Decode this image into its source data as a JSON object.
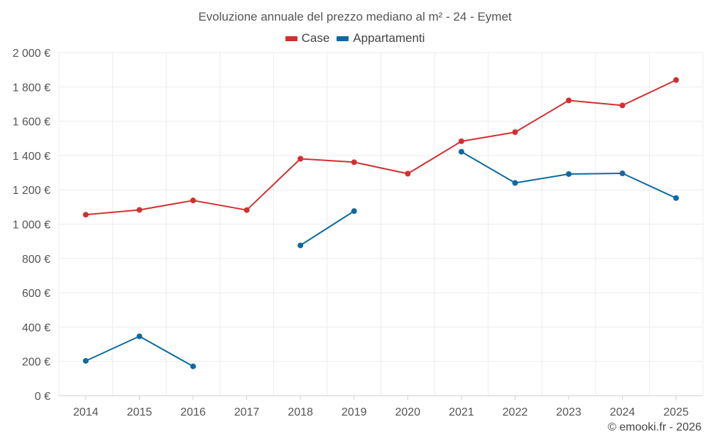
{
  "chart_data": {
    "type": "line",
    "title": "Evoluzione annuale del prezzo mediano al m² - 24 - Eymet",
    "categories": [
      "2014",
      "2015",
      "2016",
      "2017",
      "2018",
      "2019",
      "2020",
      "2021",
      "2022",
      "2023",
      "2024",
      "2025"
    ],
    "series": [
      {
        "name": "Case",
        "color": "#d32f2f",
        "values": [
          1055,
          1083,
          1138,
          1082,
          1381,
          1361,
          1294,
          1483,
          1536,
          1721,
          1692,
          1840
        ]
      },
      {
        "name": "Appartamenti",
        "color": "#0b6aa2",
        "values": [
          203,
          346,
          171,
          null,
          876,
          1076,
          null,
          1422,
          1240,
          1292,
          1296,
          1152
        ]
      }
    ],
    "y_ticks": [
      "0 €",
      "200 €",
      "400 €",
      "600 €",
      "800 €",
      "1 000 €",
      "1 200 €",
      "1 400 €",
      "1 600 €",
      "1 800 €",
      "2 000 €"
    ],
    "ylim": [
      0,
      2000
    ],
    "y_tick_step": 200,
    "grid": true,
    "legend_position": "top-center",
    "credit": "© emooki.fr - 2026"
  }
}
